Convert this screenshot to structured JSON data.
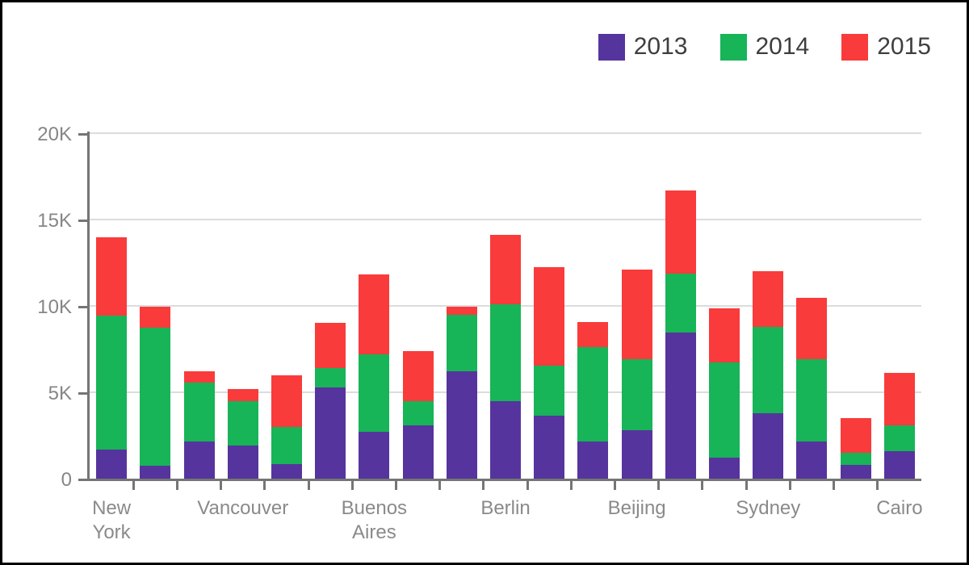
{
  "chart_data": {
    "type": "bar",
    "stacked": true,
    "title": "",
    "xlabel": "",
    "ylabel": "",
    "grid": true,
    "legend_position": "top-right",
    "ylim": [
      0,
      20000
    ],
    "y_ticks": [
      {
        "value": 0,
        "label": "0"
      },
      {
        "value": 5000,
        "label": "5K"
      },
      {
        "value": 10000,
        "label": "10K"
      },
      {
        "value": 15000,
        "label": "15K"
      },
      {
        "value": 20000,
        "label": "20K"
      }
    ],
    "categories": [
      "New York",
      "",
      "",
      "Vancouver",
      "",
      "",
      "Buenos Aires",
      "",
      "",
      "Berlin",
      "",
      "",
      "Beijing",
      "",
      "",
      "Sydney",
      "",
      "",
      "Cairo"
    ],
    "series": [
      {
        "name": "2013",
        "color": "#56349D",
        "values": [
          1700,
          750,
          2150,
          1900,
          850,
          5300,
          2700,
          3100,
          6200,
          4500,
          3650,
          2150,
          2800,
          8450,
          1200,
          3800,
          2150,
          800,
          1600
        ]
      },
      {
        "name": "2014",
        "color": "#17B458",
        "values": [
          7750,
          8000,
          3400,
          2600,
          2150,
          1100,
          4500,
          1400,
          3300,
          5600,
          2900,
          5450,
          4100,
          3400,
          5550,
          5000,
          4750,
          700,
          1500
        ]
      },
      {
        "name": "2015",
        "color": "#F93B3B",
        "values": [
          4500,
          1200,
          650,
          700,
          3000,
          2600,
          4600,
          2900,
          450,
          4000,
          5700,
          1450,
          5200,
          4850,
          3100,
          3200,
          3550,
          2000,
          3000
        ]
      }
    ]
  }
}
